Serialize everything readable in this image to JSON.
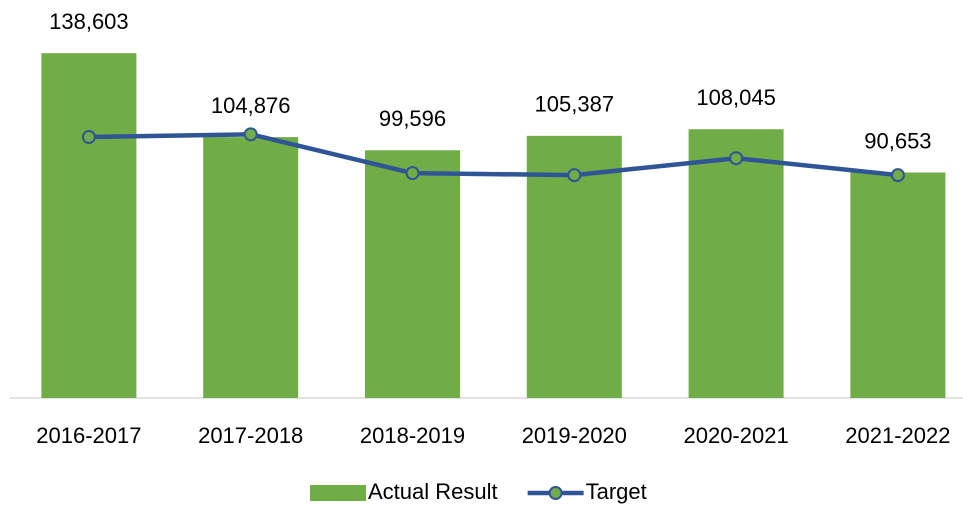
{
  "chart_data": {
    "type": "combo",
    "categories": [
      "2016-2017",
      "2017-2018",
      "2018-2019",
      "2019-2020",
      "2020-2021",
      "2021-2022"
    ],
    "series": [
      {
        "name": "Actual Result",
        "type": "bar",
        "color": "#70ad47",
        "values": [
          138603,
          104876,
          99596,
          105387,
          108045,
          90653
        ],
        "value_labels": [
          "138,603",
          "104,876",
          "99,596",
          "105,387",
          "108,045",
          "90,653"
        ]
      },
      {
        "name": "Target",
        "type": "line",
        "color": "#2f5597",
        "marker_color": "#70ad47",
        "values": [
          104900,
          106000,
          90400,
          89600,
          96400,
          89600
        ]
      }
    ],
    "ylim": [
      0,
      160000
    ],
    "legend": "bottom"
  }
}
